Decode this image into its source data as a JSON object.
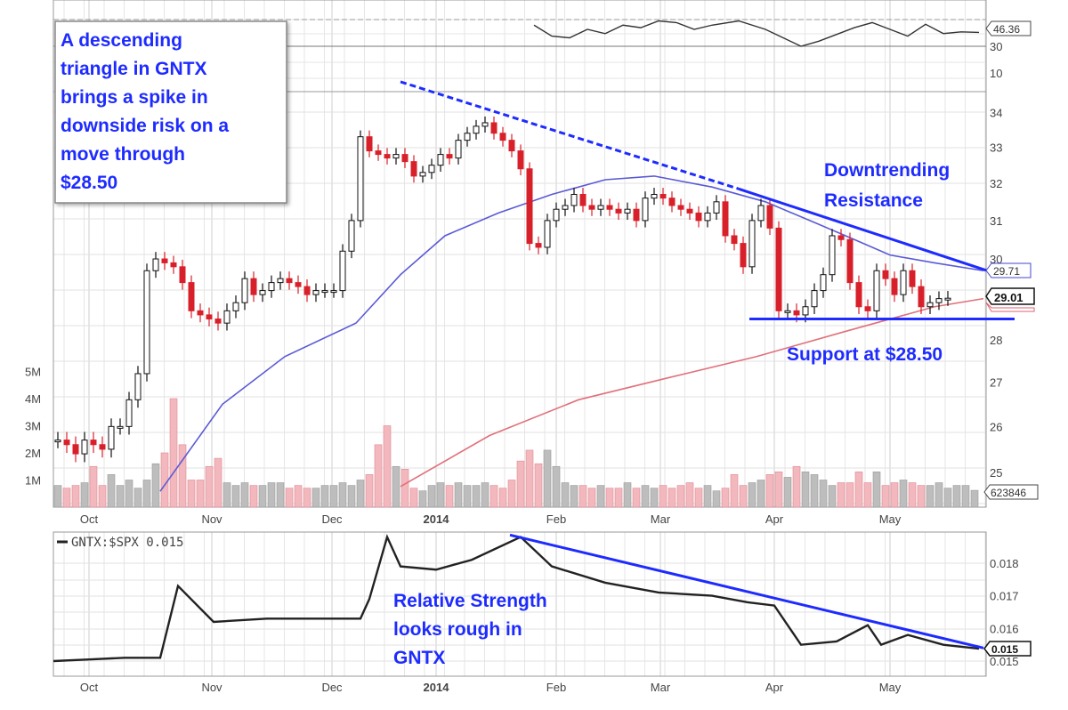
{
  "chart_data": [
    {
      "type": "candlestick",
      "symbol": "GNTX",
      "price_scale": "log",
      "ylim": [
        24.7,
        35.2
      ],
      "y_ticks": [
        "34",
        "33",
        "32",
        "31",
        "30",
        "28",
        "27",
        "26",
        "25"
      ],
      "x_ticks": [
        "Oct",
        "Nov",
        "Dec",
        "2014",
        "Feb",
        "Mar",
        "Apr",
        "May"
      ],
      "grid": true,
      "close": [
        25.7,
        25.6,
        25.4,
        25.7,
        25.6,
        25.5,
        26.0,
        26.0,
        26.6,
        27.2,
        29.7,
        30.0,
        29.9,
        29.8,
        29.4,
        28.7,
        28.6,
        28.5,
        28.4,
        28.7,
        28.9,
        29.5,
        29.1,
        29.2,
        29.4,
        29.5,
        29.4,
        29.3,
        29.1,
        29.2,
        29.2,
        29.2,
        30.2,
        31.0,
        33.3,
        32.9,
        32.8,
        32.7,
        32.8,
        32.6,
        32.2,
        32.3,
        32.5,
        32.8,
        32.7,
        33.2,
        33.4,
        33.6,
        33.7,
        33.4,
        33.2,
        32.9,
        32.4,
        30.4,
        30.3,
        31.0,
        31.3,
        31.4,
        31.7,
        31.4,
        31.3,
        31.4,
        31.3,
        31.2,
        31.3,
        31.0,
        31.6,
        31.7,
        31.6,
        31.4,
        31.3,
        31.2,
        31.0,
        31.2,
        31.5,
        30.6,
        30.4,
        29.8,
        31.0,
        31.4,
        30.8,
        28.7,
        28.7,
        28.6,
        28.8,
        29.2,
        29.6,
        30.6,
        30.5,
        29.4,
        28.8,
        28.7,
        29.7,
        29.5,
        29.1,
        29.7,
        29.3,
        28.8,
        28.9,
        29.0,
        29.01
      ],
      "volume_millions": [
        0.8,
        0.7,
        0.8,
        0.9,
        1.5,
        0.8,
        1.2,
        0.8,
        1.0,
        0.7,
        1.0,
        1.6,
        2.0,
        4.0,
        2.3,
        1.0,
        1.0,
        1.5,
        1.8,
        0.9,
        0.8,
        0.9,
        0.8,
        0.8,
        0.9,
        0.9,
        0.7,
        0.8,
        0.7,
        0.7,
        0.8,
        0.8,
        0.9,
        0.8,
        1.0,
        1.2,
        2.3,
        3.0,
        1.5,
        1.4,
        0.7,
        0.6,
        0.8,
        0.9,
        0.8,
        0.9,
        0.8,
        0.8,
        0.9,
        0.8,
        0.7,
        1.0,
        1.7,
        2.1,
        1.6,
        2.1,
        1.5,
        0.9,
        0.8,
        0.8,
        0.7,
        0.8,
        0.7,
        0.7,
        0.9,
        0.7,
        0.8,
        0.7,
        0.8,
        0.7,
        0.8,
        0.9,
        0.7,
        0.8,
        0.6,
        0.7,
        1.2,
        0.8,
        0.9,
        1.0,
        1.2,
        1.3,
        1.1,
        1.5,
        1.3,
        1.2,
        1.0,
        0.8,
        0.9,
        0.9,
        1.3,
        0.9,
        1.3,
        0.8,
        0.9,
        1.0,
        0.9,
        0.8,
        0.8,
        0.9,
        0.7,
        0.8,
        0.8,
        0.62
      ],
      "volume_ticks": [
        "5M",
        "4M",
        "3M",
        "2M",
        "1M"
      ],
      "last_price": "29.01",
      "last_volume": "623846",
      "moving_averages": [
        {
          "color": "#5a5ad6",
          "points": [
            [
              11.5,
              24.6
            ],
            [
              18.5,
              26.5
            ],
            [
              25.5,
              27.6
            ],
            [
              33.5,
              28.4
            ],
            [
              38.5,
              29.6
            ],
            [
              43.5,
              30.6
            ],
            [
              49.5,
              31.2
            ],
            [
              55.5,
              31.7
            ],
            [
              61.5,
              32.1
            ],
            [
              67,
              32.2
            ],
            [
              73.5,
              31.9
            ],
            [
              79.5,
              31.5
            ],
            [
              85.5,
              30.9
            ],
            [
              89.5,
              30.5
            ],
            [
              93.5,
              30.1
            ],
            [
              98.5,
              29.9
            ],
            [
              104,
              29.7
            ]
          ],
          "label": "29.71"
        },
        {
          "color": "#e0707a",
          "points": [
            [
              38.5,
              24.7
            ],
            [
              48.5,
              25.8
            ],
            [
              58.5,
              26.6
            ],
            [
              68.5,
              27.1
            ],
            [
              78.5,
              27.6
            ],
            [
              88.5,
              28.2
            ],
            [
              98.5,
              28.8
            ],
            [
              104,
              29.0
            ]
          ]
        }
      ],
      "trendlines": [
        {
          "style": "dashed",
          "from": [
            38.5,
            34.9
          ],
          "to": [
            76.5,
            31.85
          ]
        },
        {
          "style": "solid",
          "from": [
            76.5,
            31.85
          ],
          "to": [
            104.3,
            29.71
          ]
        },
        {
          "style": "solid",
          "level": 28.5
        }
      ],
      "annotations": [
        {
          "lines": [
            "A descending",
            "triangle in GNTX",
            "brings a spike in",
            "downside risk on a",
            "move through",
            "$28.50"
          ]
        },
        {
          "lines": [
            "Downtrending",
            "Resistance"
          ]
        },
        {
          "lines": [
            "Support at $28.50"
          ]
        }
      ]
    },
    {
      "type": "line",
      "panel": "top indicator",
      "y_ticks": [
        "30"
      ],
      "last_value": "46.36",
      "points": [
        [
          53.5,
          55
        ],
        [
          55.5,
          42
        ],
        [
          57.5,
          40
        ],
        [
          59.5,
          50
        ],
        [
          61.5,
          45
        ],
        [
          63.5,
          55
        ],
        [
          65.5,
          52
        ],
        [
          67.5,
          60
        ],
        [
          69.5,
          58
        ],
        [
          71.5,
          50
        ],
        [
          73.5,
          55
        ],
        [
          76.5,
          60
        ],
        [
          79.5,
          50
        ],
        [
          81.5,
          40
        ],
        [
          83.5,
          30
        ],
        [
          85.5,
          36
        ],
        [
          87.5,
          44
        ],
        [
          89.5,
          52
        ],
        [
          91.5,
          58
        ],
        [
          93.5,
          50
        ],
        [
          95.5,
          42
        ],
        [
          97.5,
          56
        ],
        [
          99.5,
          45
        ],
        [
          101.5,
          47
        ],
        [
          103.5,
          46.36
        ]
      ],
      "second_panel_tick": "10"
    },
    {
      "type": "line",
      "legend": "GNTX:$SPX 0.015",
      "y_ticks": [
        "0.018",
        "0.017",
        "0.016",
        "0.015"
      ],
      "last_value": "0.015",
      "x_ticks": [
        "Oct",
        "Nov",
        "Dec",
        "2014",
        "Feb",
        "Mar",
        "Apr",
        "May"
      ],
      "points": [
        [
          -0.5,
          0.015
        ],
        [
          3.5,
          0.01505
        ],
        [
          7.5,
          0.0151
        ],
        [
          11.5,
          0.0151
        ],
        [
          13.5,
          0.0173
        ],
        [
          17.5,
          0.0162
        ],
        [
          23.5,
          0.0163
        ],
        [
          29.5,
          0.0163
        ],
        [
          34,
          0.0163
        ],
        [
          35,
          0.0169
        ],
        [
          37,
          0.0188
        ],
        [
          38.5,
          0.0179
        ],
        [
          42.5,
          0.0178
        ],
        [
          46.5,
          0.0181
        ],
        [
          52,
          0.0188
        ],
        [
          55.5,
          0.0179
        ],
        [
          61.5,
          0.0174
        ],
        [
          67.5,
          0.0171
        ],
        [
          73.5,
          0.017
        ],
        [
          77.5,
          0.0168
        ],
        [
          80.5,
          0.0167
        ],
        [
          83.5,
          0.0155
        ],
        [
          87.5,
          0.0156
        ],
        [
          91,
          0.0161
        ],
        [
          92.5,
          0.0155
        ],
        [
          95.5,
          0.0158
        ],
        [
          99.5,
          0.0155
        ],
        [
          103.5,
          0.01538
        ]
      ],
      "trendline": {
        "from": [
          50.8,
          0.01886
        ],
        "to": [
          104,
          0.0154
        ]
      },
      "annotation": {
        "lines": [
          "Relative Strength",
          "looks rough in",
          "GNTX"
        ]
      }
    }
  ]
}
